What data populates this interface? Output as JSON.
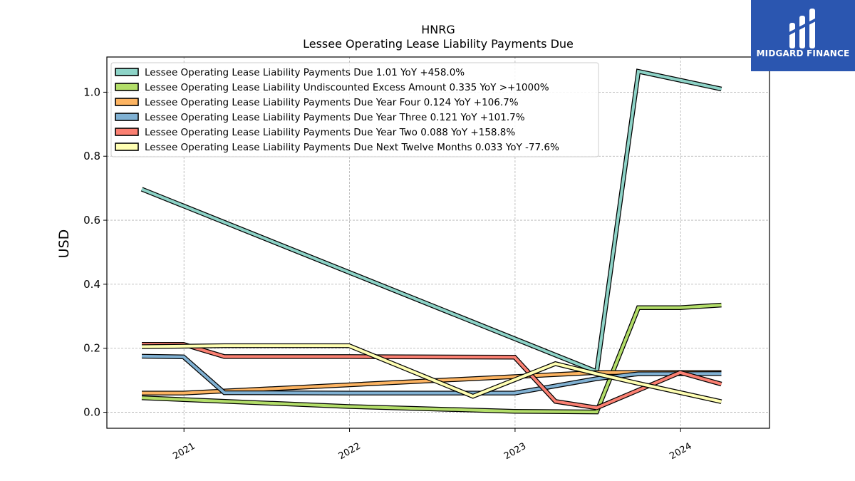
{
  "header": {
    "title_line1": "HNRG",
    "title_line2": "Lessee Operating Lease Liability Payments Due"
  },
  "brand": {
    "name": "MIDGARD FINANCE",
    "color": "#2b56b0"
  },
  "chart_data": {
    "type": "line",
    "title": "HNRG\nLessee Operating Lease Liability Payments Due",
    "ylabel": "USD",
    "xlabel": "",
    "ylim": [
      -0.05,
      1.11
    ],
    "xlim": [
      "2020-07-15",
      "2024-07-15"
    ],
    "x_ticks": [
      "2021",
      "2022",
      "2023",
      "2024"
    ],
    "y_ticks": [
      0.0,
      0.2,
      0.4,
      0.6,
      0.8,
      1.0
    ],
    "grid": true,
    "legend_position": "top-left",
    "series": [
      {
        "name": "Lessee Operating Lease Liability Payments Due  1.01 YoY +458.0%",
        "color": "#8dd3c7",
        "points": [
          [
            "2020-09-30",
            0.697
          ],
          [
            "2023-06-30",
            0.127
          ],
          [
            "2023-09-30",
            1.065
          ],
          [
            "2024-03-31",
            1.01
          ]
        ]
      },
      {
        "name": "Lessee Operating Lease Liability Undiscounted Excess Amount  0.335 YoY >+1000%",
        "color": "#b3de69",
        "points": [
          [
            "2020-09-30",
            0.045
          ],
          [
            "2021-12-31",
            0.018
          ],
          [
            "2022-12-31",
            0.003
          ],
          [
            "2023-06-30",
            0.001
          ],
          [
            "2023-09-30",
            0.327
          ],
          [
            "2023-12-31",
            0.327
          ],
          [
            "2024-03-31",
            0.335
          ]
        ]
      },
      {
        "name": "Lessee Operating Lease Liability Payments Due Year Four  0.124 YoY +106.7%",
        "color": "#fdb462",
        "points": [
          [
            "2020-09-30",
            0.06
          ],
          [
            "2020-12-31",
            0.06
          ],
          [
            "2023-06-30",
            0.124
          ],
          [
            "2024-03-31",
            0.124
          ]
        ]
      },
      {
        "name": "Lessee Operating Lease Liability Payments Due Year Three  0.121 YoY +101.7%",
        "color": "#80b1d3",
        "points": [
          [
            "2020-09-30",
            0.175
          ],
          [
            "2020-12-31",
            0.173
          ],
          [
            "2021-03-31",
            0.061
          ],
          [
            "2021-12-31",
            0.06
          ],
          [
            "2022-12-31",
            0.06
          ],
          [
            "2023-06-30",
            0.105
          ],
          [
            "2023-09-30",
            0.12
          ],
          [
            "2024-03-31",
            0.121
          ]
        ]
      },
      {
        "name": "Lessee Operating Lease Liability Payments Due Year Two  0.088 YoY +158.8%",
        "color": "#fb8072",
        "points": [
          [
            "2020-09-30",
            0.212
          ],
          [
            "2020-12-31",
            0.212
          ],
          [
            "2021-03-31",
            0.174
          ],
          [
            "2021-12-31",
            0.174
          ],
          [
            "2022-12-31",
            0.172
          ],
          [
            "2023-03-31",
            0.034
          ],
          [
            "2023-06-30",
            0.014
          ],
          [
            "2023-12-31",
            0.124
          ],
          [
            "2024-03-31",
            0.088
          ]
        ]
      },
      {
        "name": "Lessee Operating Lease Liability Payments Due Next Twelve Months  0.033 YoY -77.6%",
        "color": "#ffffb3",
        "points": [
          [
            "2020-09-30",
            0.205
          ],
          [
            "2021-03-31",
            0.208
          ],
          [
            "2021-12-31",
            0.208
          ],
          [
            "2022-09-30",
            0.05
          ],
          [
            "2023-03-31",
            0.152
          ],
          [
            "2023-06-30",
            0.12
          ],
          [
            "2023-09-30",
            0.09
          ],
          [
            "2024-03-31",
            0.033
          ]
        ]
      }
    ]
  }
}
